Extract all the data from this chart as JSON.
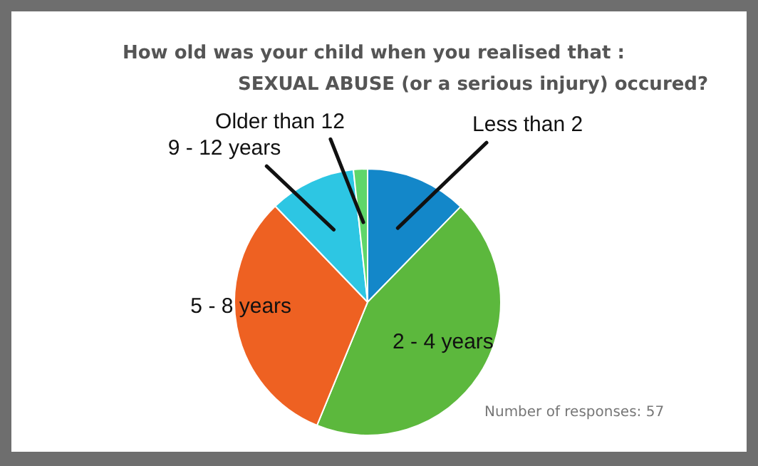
{
  "chart_data": {
    "type": "pie",
    "title": "How old was your child when you realised that :",
    "subtitle": "SEXUAL ABUSE (or a serious injury) occured?",
    "categories": [
      "Less than 2",
      "2 - 4 years",
      "5 - 8 years",
      "9 - 12 years",
      "Older than 12"
    ],
    "values": [
      12.3,
      43.9,
      31.6,
      10.5,
      1.7
    ],
    "colors": [
      "#1387c9",
      "#5cb83d",
      "#ee6122",
      "#2dc6e3",
      "#5fd66a"
    ],
    "annotations": [
      "Number of responses: 57"
    ],
    "legend": false
  }
}
